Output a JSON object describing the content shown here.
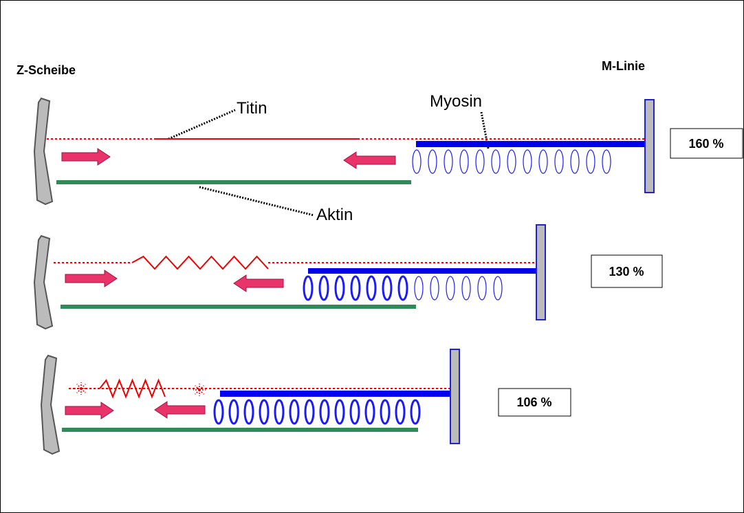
{
  "labels": {
    "z_disc": "Z-Scheibe",
    "m_line": "M-Linie",
    "titin": "Titin",
    "myosin": "Myosin",
    "aktin": "Aktin"
  },
  "panels": [
    {
      "label": "160 %"
    },
    {
      "label": "130 %"
    },
    {
      "label": "106 %"
    }
  ]
}
